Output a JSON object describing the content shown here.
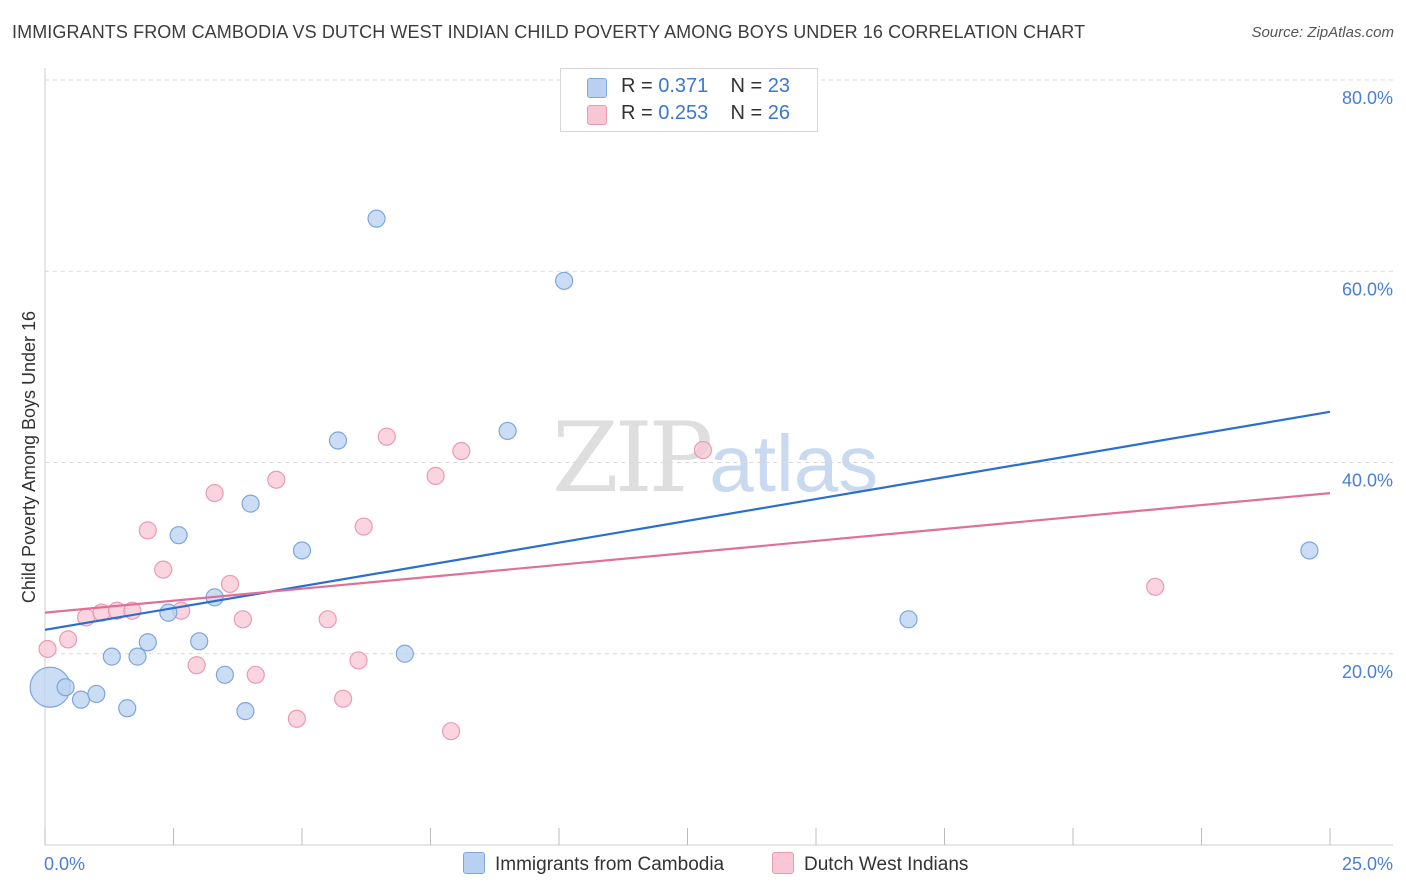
{
  "title": "IMMIGRANTS FROM CAMBODIA VS DUTCH WEST INDIAN CHILD POVERTY AMONG BOYS UNDER 16 CORRELATION CHART",
  "source": "Source: ZipAtlas.com",
  "watermark": {
    "zip": "ZIP",
    "atlas": "atlas"
  },
  "legend": {
    "r_label": "R =",
    "n_label": "N =",
    "series": [
      {
        "r": "0.371",
        "n": "23"
      },
      {
        "r": "0.253",
        "n": "26"
      }
    ]
  },
  "colors": {
    "series1_fill": "#b9d1f0",
    "series1_stroke": "#7ea6dc",
    "series1_line": "#2a6fcf",
    "series2_fill": "#f8c6d4",
    "series2_stroke": "#ec9ab3",
    "series2_line": "#e0709a"
  },
  "chart_data": {
    "type": "scatter",
    "title": "IMMIGRANTS FROM CAMBODIA VS DUTCH WEST INDIAN CHILD POVERTY AMONG BOYS UNDER 16 CORRELATION CHART",
    "xlabel": "",
    "ylabel": "Child Poverty Among Boys Under 16",
    "xlim": [
      0,
      25
    ],
    "ylim": [
      0,
      80
    ],
    "x_tick_labels": [
      "0.0%",
      "25.0%"
    ],
    "y_ticks": [
      20,
      40,
      60,
      80
    ],
    "y_tick_labels": [
      "20.0%",
      "40.0%",
      "60.0%",
      "80.0%"
    ],
    "grid": true,
    "legend_position": "top-center",
    "series": [
      {
        "name": "Immigrants from Cambodia",
        "r": 0.371,
        "n": 23,
        "trend": {
          "x": [
            0,
            25
          ],
          "y": [
            22.5,
            45.3
          ]
        },
        "points": [
          {
            "x": 0.1,
            "y": 16.5,
            "big": true
          },
          {
            "x": 0.4,
            "y": 16.5
          },
          {
            "x": 0.7,
            "y": 15.2
          },
          {
            "x": 1.0,
            "y": 15.8
          },
          {
            "x": 1.3,
            "y": 19.7
          },
          {
            "x": 1.6,
            "y": 14.3
          },
          {
            "x": 1.8,
            "y": 19.7
          },
          {
            "x": 2.0,
            "y": 21.2
          },
          {
            "x": 2.4,
            "y": 24.3
          },
          {
            "x": 2.6,
            "y": 32.4
          },
          {
            "x": 3.0,
            "y": 21.3
          },
          {
            "x": 3.3,
            "y": 25.9
          },
          {
            "x": 3.5,
            "y": 17.8
          },
          {
            "x": 3.9,
            "y": 14.0
          },
          {
            "x": 4.0,
            "y": 35.7
          },
          {
            "x": 5.0,
            "y": 30.8
          },
          {
            "x": 5.7,
            "y": 42.3
          },
          {
            "x": 6.45,
            "y": 65.5
          },
          {
            "x": 7.0,
            "y": 20.0
          },
          {
            "x": 9.0,
            "y": 43.3
          },
          {
            "x": 10.1,
            "y": 59.0
          },
          {
            "x": 16.8,
            "y": 23.6
          },
          {
            "x": 24.6,
            "y": 30.8
          }
        ]
      },
      {
        "name": "Dutch West Indians",
        "r": 0.253,
        "n": 26,
        "trend": {
          "x": [
            0,
            25
          ],
          "y": [
            24.3,
            36.8
          ]
        },
        "points": [
          {
            "x": 0.05,
            "y": 20.5
          },
          {
            "x": 0.45,
            "y": 21.5
          },
          {
            "x": 0.8,
            "y": 23.8
          },
          {
            "x": 1.1,
            "y": 24.3
          },
          {
            "x": 1.4,
            "y": 24.5
          },
          {
            "x": 1.7,
            "y": 24.5
          },
          {
            "x": 2.0,
            "y": 32.9
          },
          {
            "x": 2.3,
            "y": 28.8
          },
          {
            "x": 2.65,
            "y": 24.5
          },
          {
            "x": 2.95,
            "y": 18.8
          },
          {
            "x": 3.3,
            "y": 36.8
          },
          {
            "x": 3.6,
            "y": 27.3
          },
          {
            "x": 3.85,
            "y": 23.6
          },
          {
            "x": 4.1,
            "y": 17.8
          },
          {
            "x": 4.5,
            "y": 38.2
          },
          {
            "x": 4.9,
            "y": 13.2
          },
          {
            "x": 5.5,
            "y": 23.6
          },
          {
            "x": 5.8,
            "y": 15.3
          },
          {
            "x": 6.1,
            "y": 19.3
          },
          {
            "x": 6.2,
            "y": 33.3
          },
          {
            "x": 6.65,
            "y": 42.7
          },
          {
            "x": 7.6,
            "y": 38.6
          },
          {
            "x": 7.9,
            "y": 11.9
          },
          {
            "x": 8.1,
            "y": 41.2
          },
          {
            "x": 12.8,
            "y": 41.3
          },
          {
            "x": 21.6,
            "y": 27.0
          }
        ]
      }
    ]
  }
}
